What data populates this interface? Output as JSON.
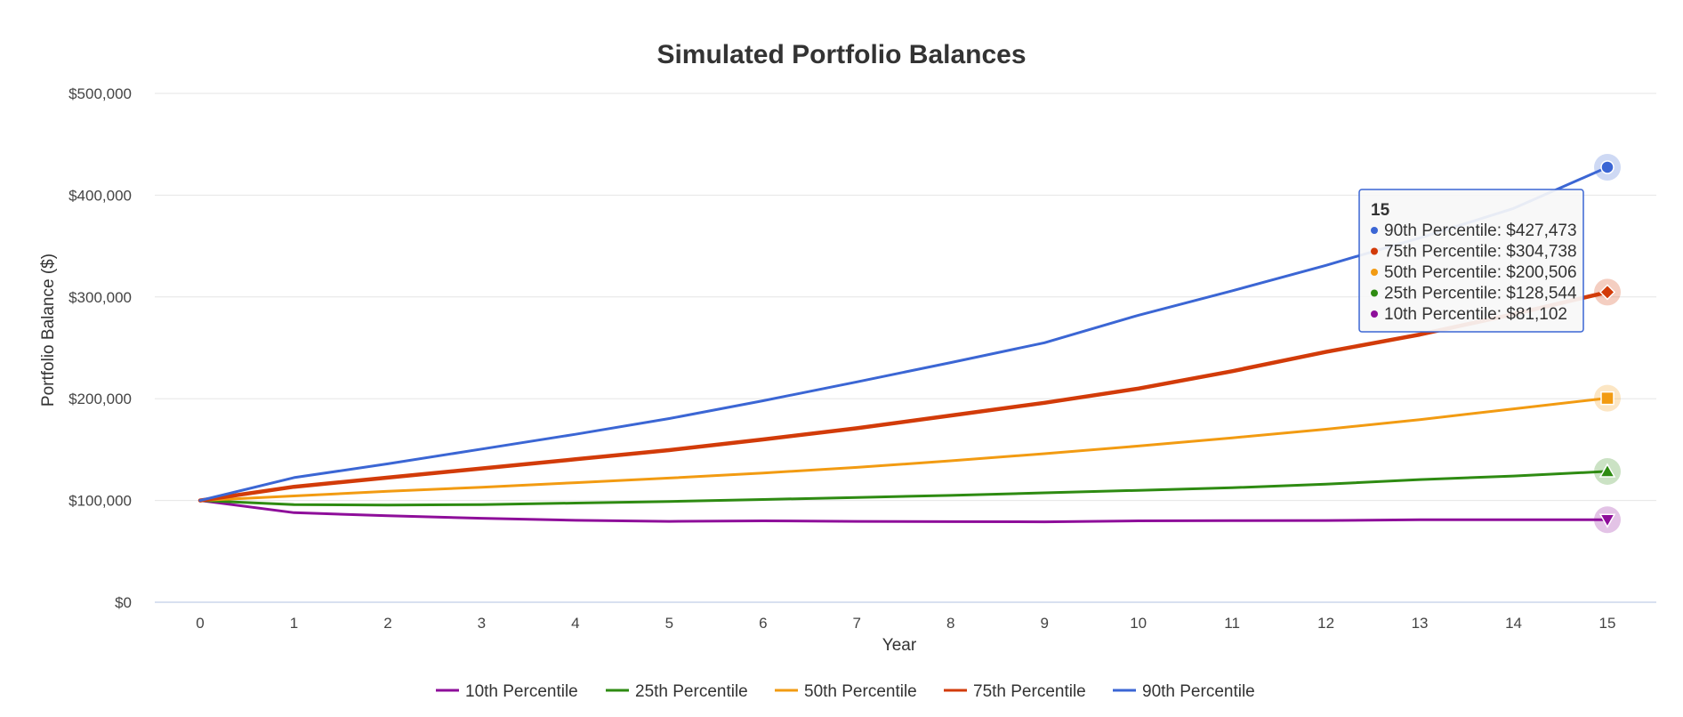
{
  "chart_data": {
    "type": "line",
    "title": "Simulated Portfolio Balances",
    "xlabel": "Year",
    "ylabel": "Portfolio Balance ($)",
    "x": [
      0,
      1,
      2,
      3,
      4,
      5,
      6,
      7,
      8,
      9,
      10,
      11,
      12,
      13,
      14,
      15
    ],
    "ylim": [
      0,
      500000
    ],
    "yticks": [
      0,
      100000,
      200000,
      300000,
      400000,
      500000
    ],
    "ytick_labels": [
      "$0",
      "$100,000",
      "$200,000",
      "$300,000",
      "$400,000",
      "$500,000"
    ],
    "grid": true,
    "legend_position": "bottom",
    "series": [
      {
        "name": "10th Percentile",
        "color": "#8e0e9a",
        "marker": "triangle-down",
        "values": [
          100000,
          88000,
          85000,
          82500,
          80500,
          79500,
          80000,
          79500,
          79200,
          79000,
          80000,
          80200,
          80300,
          81000,
          81000,
          81102
        ]
      },
      {
        "name": "25th Percentile",
        "color": "#2e8b12",
        "marker": "triangle-up",
        "values": [
          100000,
          96000,
          95500,
          96000,
          97500,
          99000,
          101000,
          103000,
          105000,
          107500,
          110000,
          112500,
          116000,
          120500,
          124000,
          128544
        ]
      },
      {
        "name": "50th Percentile",
        "color": "#f29b12",
        "marker": "square",
        "values": [
          100000,
          104500,
          109000,
          113000,
          117500,
          122000,
          127000,
          132500,
          139000,
          146000,
          153500,
          161500,
          170000,
          179500,
          190000,
          200506
        ]
      },
      {
        "name": "75th Percentile",
        "color": "#d23b09",
        "marker": "diamond",
        "values": [
          100000,
          113500,
          122500,
          131500,
          140500,
          149500,
          160000,
          171000,
          183500,
          196000,
          210000,
          227000,
          246000,
          263000,
          283000,
          304738
        ]
      },
      {
        "name": "90th Percentile",
        "color": "#3b66d4",
        "marker": "circle",
        "values": [
          100000,
          122500,
          136000,
          150500,
          165000,
          180500,
          198000,
          216500,
          235500,
          255000,
          282000,
          306000,
          331000,
          358000,
          387000,
          427473
        ]
      }
    ],
    "tooltip": {
      "header": "15",
      "entries": [
        {
          "label": "90th Percentile: $427,473",
          "color": "#3b66d4"
        },
        {
          "label": "75th Percentile: $304,738",
          "color": "#d23b09"
        },
        {
          "label": "50th Percentile: $200,506",
          "color": "#f29b12"
        },
        {
          "label": "25th Percentile: $128,544",
          "color": "#2e8b12"
        },
        {
          "label": "10th Percentile: $81,102",
          "color": "#8e0e9a"
        }
      ]
    }
  }
}
